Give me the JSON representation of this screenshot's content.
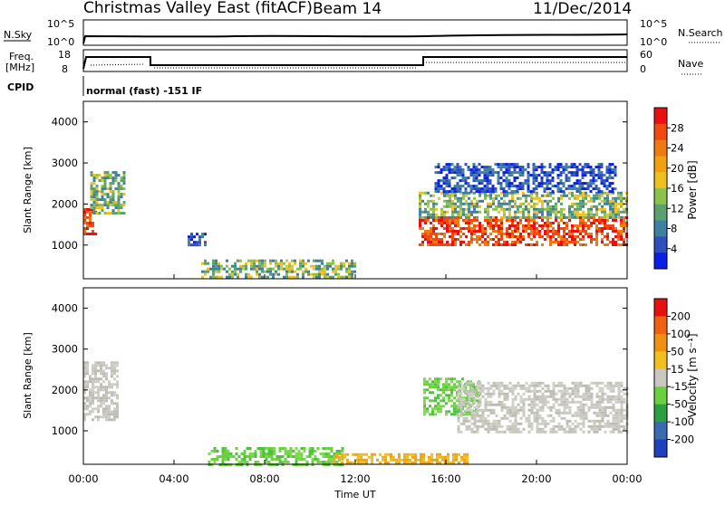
{
  "header": {
    "title": "Christmas Valley East (fitACF)",
    "beam": "Beam 14",
    "date": "11/Dec/2014"
  },
  "strip_panels": {
    "nsky": {
      "label": "N.Sky",
      "left_ticks": [
        "10^5",
        "10^0"
      ],
      "right_label": "N.Search",
      "right_ticks": [
        "10^5",
        "10^0"
      ]
    },
    "freq": {
      "label_line1": "Freq.",
      "label_line2": "[MHz]",
      "left_ticks": [
        "18",
        "8"
      ],
      "right_label": "Nave",
      "right_ticks": [
        "60",
        "0"
      ]
    },
    "cpid": {
      "label": "CPID",
      "text": "normal (fast) -151 IF"
    }
  },
  "chart_data": [
    {
      "type": "heatmap",
      "name": "power",
      "ylabel": "Slant Range [km]",
      "xlabel": "",
      "xlim": [
        0,
        24
      ],
      "ylim": [
        180,
        4500
      ],
      "yticks": [
        1000,
        2000,
        3000,
        4000
      ],
      "xtick_labels": [],
      "colorbar": {
        "label": "Power [dB]",
        "ticks": [
          "28",
          "24",
          "20",
          "16",
          "12",
          "8",
          "4"
        ],
        "colors": [
          "#0a1fe6",
          "#2f4fbf",
          "#3f7fa0",
          "#5aa070",
          "#8ac24a",
          "#f0c020",
          "#f0a010",
          "#f07a10",
          "#f04a10",
          "#e81010"
        ]
      },
      "regions": [
        {
          "t0": 0.0,
          "t1": 0.5,
          "r0": 1300,
          "r1": 1900,
          "level": "high"
        },
        {
          "t0": 0.3,
          "t1": 1.8,
          "r0": 1800,
          "r1": 2800,
          "level": "mid"
        },
        {
          "t0": 4.6,
          "t1": 5.4,
          "r0": 1000,
          "r1": 1300,
          "level": "low"
        },
        {
          "t0": 5.2,
          "t1": 12.0,
          "r0": 200,
          "r1": 650,
          "level": "mid"
        },
        {
          "t0": 14.8,
          "t1": 24.0,
          "r0": 1000,
          "r1": 1700,
          "level": "high"
        },
        {
          "t0": 14.8,
          "t1": 24.0,
          "r0": 1700,
          "r1": 2300,
          "level": "mid"
        },
        {
          "t0": 15.5,
          "t1": 23.5,
          "r0": 2300,
          "r1": 3000,
          "level": "low"
        }
      ]
    },
    {
      "type": "heatmap",
      "name": "velocity",
      "ylabel": "Slant Range [km]",
      "xlabel": "Time UT",
      "xlim": [
        0,
        24
      ],
      "ylim": [
        180,
        4500
      ],
      "yticks": [
        1000,
        2000,
        3000,
        4000
      ],
      "xtick_labels": [
        "00:00",
        "04:00",
        "08:00",
        "12:00",
        "16:00",
        "20:00",
        "00:00"
      ],
      "colorbar": {
        "label": "Velocity [m s⁻¹]",
        "ticks": [
          "200",
          "100",
          "50",
          "15",
          "-15",
          "-50",
          "-100",
          "-200"
        ],
        "colors": [
          "#1f3fbf",
          "#3a6ab0",
          "#2aa040",
          "#6ad040",
          "#c8c8c0",
          "#f0c020",
          "#f09010",
          "#f06010",
          "#e81010"
        ]
      },
      "regions": [
        {
          "t0": 0.0,
          "t1": 1.5,
          "r0": 1300,
          "r1": 2700,
          "level": "grey"
        },
        {
          "t0": 5.5,
          "t1": 11.5,
          "r0": 200,
          "r1": 600,
          "level": "green"
        },
        {
          "t0": 11.0,
          "t1": 17.0,
          "r0": 200,
          "r1": 450,
          "level": "orange"
        },
        {
          "t0": 15.0,
          "t1": 17.5,
          "r0": 1400,
          "r1": 2300,
          "level": "green"
        },
        {
          "t0": 16.5,
          "t1": 24.0,
          "r0": 1000,
          "r1": 2200,
          "level": "grey"
        }
      ]
    }
  ]
}
